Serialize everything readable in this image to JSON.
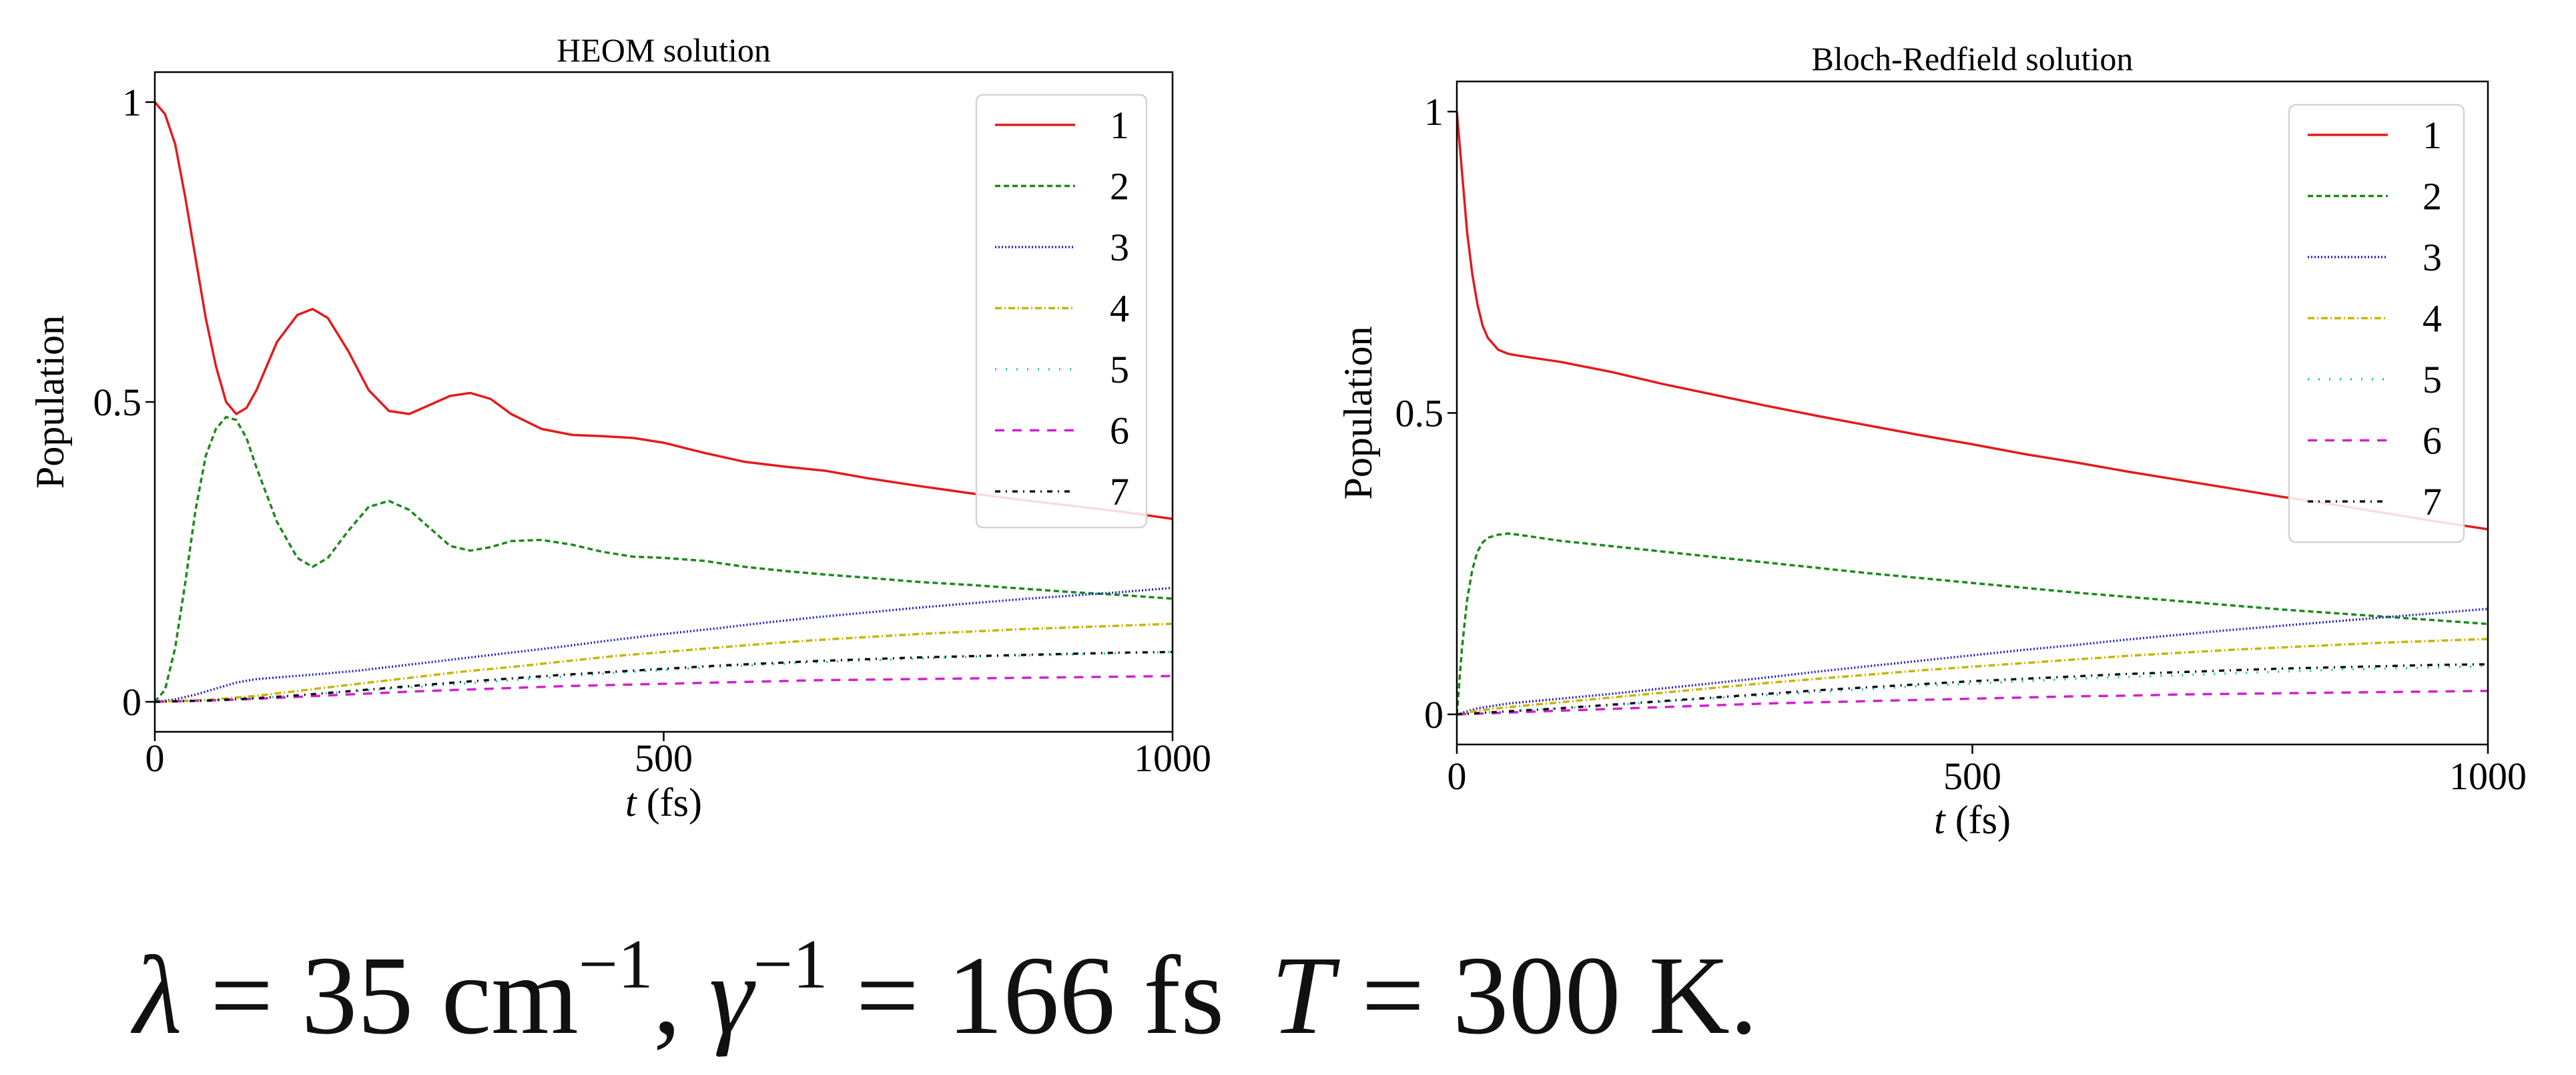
{
  "chart_data": [
    {
      "type": "line",
      "title": "HEOM solution",
      "xlabel_italic": "t",
      "xlabel_unit": "(fs)",
      "ylabel": "Population",
      "xlim": [
        0,
        1000
      ],
      "ylim": [
        -0.05,
        1.05
      ],
      "xticks": [
        0,
        500,
        1000
      ],
      "yticks": [
        0,
        0.5,
        1
      ],
      "ytick_labels": [
        "0",
        "0.5",
        "1"
      ],
      "grid": false,
      "legend_position": "top-right",
      "series": [
        {
          "name": "1",
          "color": "#e31a1c",
          "dash": "solid",
          "x": [
            0,
            10,
            20,
            30,
            40,
            50,
            60,
            70,
            80,
            90,
            100,
            120,
            140,
            155,
            170,
            190,
            210,
            230,
            250,
            270,
            290,
            310,
            330,
            350,
            380,
            410,
            440,
            470,
            500,
            540,
            580,
            620,
            660,
            700,
            750,
            800,
            850,
            900,
            950,
            1000
          ],
          "y": [
            1.0,
            0.98,
            0.93,
            0.84,
            0.74,
            0.64,
            0.56,
            0.5,
            0.48,
            0.49,
            0.52,
            0.6,
            0.645,
            0.655,
            0.64,
            0.585,
            0.52,
            0.485,
            0.48,
            0.495,
            0.51,
            0.515,
            0.505,
            0.48,
            0.455,
            0.445,
            0.443,
            0.44,
            0.432,
            0.415,
            0.4,
            0.392,
            0.385,
            0.373,
            0.36,
            0.348,
            0.337,
            0.327,
            0.317,
            0.305
          ]
        },
        {
          "name": "2",
          "color": "#1a8a1a",
          "dash": "8,5",
          "x": [
            0,
            10,
            20,
            30,
            40,
            50,
            60,
            70,
            80,
            90,
            100,
            120,
            140,
            155,
            170,
            190,
            210,
            230,
            250,
            270,
            290,
            310,
            330,
            350,
            380,
            410,
            440,
            470,
            500,
            540,
            580,
            620,
            660,
            700,
            750,
            800,
            850,
            900,
            950,
            1000
          ],
          "y": [
            0.0,
            0.02,
            0.09,
            0.2,
            0.32,
            0.41,
            0.455,
            0.475,
            0.47,
            0.44,
            0.39,
            0.3,
            0.24,
            0.225,
            0.24,
            0.285,
            0.325,
            0.335,
            0.32,
            0.29,
            0.26,
            0.252,
            0.258,
            0.268,
            0.27,
            0.262,
            0.25,
            0.242,
            0.24,
            0.235,
            0.225,
            0.218,
            0.212,
            0.207,
            0.2,
            0.195,
            0.189,
            0.183,
            0.178,
            0.172
          ]
        },
        {
          "name": "3",
          "color": "#2020d0",
          "dash": "2,3",
          "x": [
            0,
            20,
            40,
            60,
            80,
            100,
            130,
            160,
            200,
            250,
            300,
            350,
            400,
            450,
            500,
            550,
            600,
            650,
            700,
            750,
            800,
            850,
            900,
            950,
            1000
          ],
          "y": [
            0.0,
            0.004,
            0.012,
            0.022,
            0.032,
            0.038,
            0.042,
            0.046,
            0.052,
            0.062,
            0.072,
            0.082,
            0.092,
            0.103,
            0.113,
            0.122,
            0.132,
            0.141,
            0.149,
            0.157,
            0.164,
            0.171,
            0.177,
            0.183,
            0.19
          ]
        },
        {
          "name": "4",
          "color": "#c8b400",
          "dash": "10,4,2,4",
          "x": [
            0,
            50,
            100,
            150,
            200,
            250,
            300,
            350,
            400,
            450,
            500,
            550,
            600,
            650,
            700,
            750,
            800,
            850,
            900,
            950,
            1000
          ],
          "y": [
            0.0,
            0.003,
            0.01,
            0.02,
            0.03,
            0.04,
            0.05,
            0.058,
            0.067,
            0.076,
            0.083,
            0.09,
            0.097,
            0.103,
            0.108,
            0.113,
            0.117,
            0.121,
            0.124,
            0.127,
            0.13
          ]
        },
        {
          "name": "5",
          "color": "#17c5c5",
          "dash": "2,14",
          "x": [
            0,
            50,
            100,
            150,
            200,
            250,
            300,
            350,
            400,
            450,
            500,
            550,
            600,
            650,
            700,
            750,
            800,
            850,
            900,
            950,
            1000
          ],
          "y": [
            0.0,
            0.002,
            0.006,
            0.012,
            0.018,
            0.024,
            0.03,
            0.036,
            0.042,
            0.048,
            0.053,
            0.058,
            0.062,
            0.066,
            0.069,
            0.072,
            0.075,
            0.077,
            0.079,
            0.081,
            0.083
          ]
        },
        {
          "name": "6",
          "color": "#d020d0",
          "dash": "14,12",
          "x": [
            0,
            50,
            100,
            150,
            200,
            250,
            300,
            350,
            400,
            450,
            500,
            550,
            600,
            650,
            700,
            750,
            800,
            850,
            900,
            950,
            1000
          ],
          "y": [
            0.0,
            0.002,
            0.005,
            0.009,
            0.013,
            0.017,
            0.02,
            0.023,
            0.026,
            0.028,
            0.03,
            0.032,
            0.034,
            0.036,
            0.037,
            0.038,
            0.039,
            0.04,
            0.041,
            0.042,
            0.043
          ]
        },
        {
          "name": "7",
          "color": "#111111",
          "dash": "8,8,2,8",
          "x": [
            0,
            50,
            100,
            150,
            200,
            250,
            300,
            350,
            400,
            450,
            500,
            550,
            600,
            650,
            700,
            750,
            800,
            850,
            900,
            950,
            1000
          ],
          "y": [
            0.0,
            0.002,
            0.006,
            0.012,
            0.019,
            0.026,
            0.033,
            0.039,
            0.045,
            0.05,
            0.055,
            0.06,
            0.064,
            0.068,
            0.071,
            0.074,
            0.076,
            0.078,
            0.08,
            0.082,
            0.083
          ]
        }
      ]
    },
    {
      "type": "line",
      "title": "Bloch-Redfield solution",
      "xlabel_italic": "t",
      "xlabel_unit": "(fs)",
      "ylabel": "Population",
      "xlim": [
        0,
        1000
      ],
      "ylim": [
        -0.05,
        1.05
      ],
      "xticks": [
        0,
        500,
        1000
      ],
      "yticks": [
        0,
        0.5,
        1
      ],
      "ytick_labels": [
        "0",
        "0.5",
        "1"
      ],
      "grid": false,
      "legend_position": "top-right",
      "series": [
        {
          "name": "1",
          "color": "#e31a1c",
          "dash": "solid",
          "x": [
            0,
            5,
            10,
            15,
            20,
            25,
            30,
            40,
            50,
            60,
            80,
            100,
            150,
            200,
            250,
            300,
            350,
            400,
            450,
            500,
            550,
            600,
            650,
            700,
            750,
            800,
            850,
            900,
            950,
            1000
          ],
          "y": [
            1.0,
            0.9,
            0.8,
            0.73,
            0.68,
            0.645,
            0.625,
            0.605,
            0.598,
            0.595,
            0.59,
            0.585,
            0.568,
            0.548,
            0.53,
            0.512,
            0.495,
            0.479,
            0.463,
            0.448,
            0.432,
            0.418,
            0.403,
            0.389,
            0.375,
            0.361,
            0.348,
            0.334,
            0.32,
            0.307
          ]
        },
        {
          "name": "2",
          "color": "#1a8a1a",
          "dash": "8,5",
          "x": [
            0,
            5,
            10,
            15,
            20,
            25,
            30,
            40,
            50,
            60,
            80,
            100,
            150,
            200,
            250,
            300,
            350,
            400,
            450,
            500,
            550,
            600,
            650,
            700,
            750,
            800,
            850,
            900,
            950,
            1000
          ],
          "y": [
            0.0,
            0.11,
            0.19,
            0.24,
            0.27,
            0.285,
            0.293,
            0.298,
            0.3,
            0.298,
            0.293,
            0.288,
            0.279,
            0.27,
            0.261,
            0.252,
            0.243,
            0.234,
            0.226,
            0.218,
            0.21,
            0.202,
            0.195,
            0.188,
            0.181,
            0.174,
            0.168,
            0.162,
            0.156,
            0.15
          ]
        },
        {
          "name": "3",
          "color": "#2020d0",
          "dash": "2,3",
          "x": [
            0,
            20,
            50,
            100,
            150,
            200,
            250,
            300,
            350,
            400,
            450,
            500,
            550,
            600,
            650,
            700,
            750,
            800,
            850,
            900,
            950,
            1000
          ],
          "y": [
            0.0,
            0.01,
            0.018,
            0.026,
            0.034,
            0.043,
            0.052,
            0.061,
            0.071,
            0.08,
            0.089,
            0.098,
            0.107,
            0.115,
            0.124,
            0.132,
            0.14,
            0.147,
            0.154,
            0.161,
            0.168,
            0.175
          ]
        },
        {
          "name": "4",
          "color": "#c8b400",
          "dash": "10,4,2,4",
          "x": [
            0,
            20,
            50,
            100,
            150,
            200,
            250,
            300,
            350,
            400,
            450,
            500,
            550,
            600,
            650,
            700,
            750,
            800,
            850,
            900,
            950,
            1000
          ],
          "y": [
            0.0,
            0.006,
            0.012,
            0.02,
            0.028,
            0.036,
            0.044,
            0.052,
            0.059,
            0.066,
            0.073,
            0.079,
            0.085,
            0.091,
            0.097,
            0.102,
            0.107,
            0.111,
            0.115,
            0.119,
            0.122,
            0.125
          ]
        },
        {
          "name": "5",
          "color": "#17c5c5",
          "dash": "2,14",
          "x": [
            0,
            50,
            100,
            150,
            200,
            250,
            300,
            350,
            400,
            450,
            500,
            550,
            600,
            650,
            700,
            750,
            800,
            850,
            900,
            950,
            1000
          ],
          "y": [
            0.0,
            0.005,
            0.01,
            0.015,
            0.021,
            0.027,
            0.032,
            0.037,
            0.042,
            0.047,
            0.051,
            0.055,
            0.059,
            0.062,
            0.065,
            0.068,
            0.071,
            0.074,
            0.076,
            0.078,
            0.08
          ]
        },
        {
          "name": "6",
          "color": "#d020d0",
          "dash": "14,12",
          "x": [
            0,
            50,
            100,
            150,
            200,
            250,
            300,
            350,
            400,
            450,
            500,
            550,
            600,
            650,
            700,
            750,
            800,
            850,
            900,
            950,
            1000
          ],
          "y": [
            0.0,
            0.003,
            0.006,
            0.009,
            0.012,
            0.015,
            0.018,
            0.02,
            0.022,
            0.024,
            0.026,
            0.028,
            0.03,
            0.031,
            0.033,
            0.034,
            0.035,
            0.036,
            0.037,
            0.038,
            0.039
          ]
        },
        {
          "name": "7",
          "color": "#111111",
          "dash": "8,8,2,8",
          "x": [
            0,
            50,
            100,
            150,
            200,
            250,
            300,
            350,
            400,
            450,
            500,
            550,
            600,
            650,
            700,
            750,
            800,
            850,
            900,
            950,
            1000
          ],
          "y": [
            0.0,
            0.005,
            0.01,
            0.016,
            0.022,
            0.028,
            0.034,
            0.04,
            0.045,
            0.05,
            0.055,
            0.059,
            0.063,
            0.067,
            0.07,
            0.073,
            0.076,
            0.078,
            0.08,
            0.082,
            0.083
          ]
        }
      ]
    }
  ],
  "caption": {
    "lambda_sym": "λ",
    "eq1": " = 35 cm",
    "exp1": "−1",
    "sep1": ", ",
    "gamma_sym": "γ",
    "exp2": "−1",
    "eq2": " = 166 fs",
    "T_sym": "T",
    "eq3": " = 300 K."
  }
}
